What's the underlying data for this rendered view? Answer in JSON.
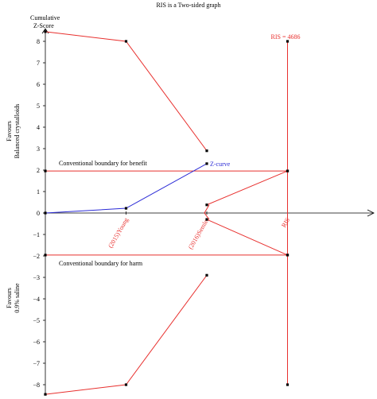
{
  "chart_data": {
    "type": "line",
    "title": "RIS is a Two-sided graph",
    "ylabel_top": "Cumulative",
    "ylabel_bottom": "Z-Score",
    "favours_top": [
      "Favours",
      "Balanced crystalloids"
    ],
    "favours_bottom": [
      "Favours",
      "0.9% saline"
    ],
    "ylim": [
      -8.5,
      8.7
    ],
    "yticks": [
      8,
      7,
      6,
      5,
      4,
      3,
      2,
      1,
      0,
      -1,
      -2,
      -3,
      -4,
      -5,
      -6,
      -7,
      -8
    ],
    "ytick_labels": [
      "8",
      "7",
      "6",
      "5",
      "4",
      "3",
      "2",
      "1",
      "0",
      "−1",
      "−2",
      "−3",
      "−4",
      "−5",
      "−6",
      "−7",
      "−8"
    ],
    "x_categories": [
      "(2015)Young",
      "(2016)Semler",
      "RIS"
    ],
    "ris_label": "RIS = 4686",
    "z_curve": {
      "name": "Z-curve",
      "color": "#2b2bd6",
      "points": [
        [
          0,
          0
        ],
        [
          1,
          0.22
        ],
        [
          2,
          2.3
        ]
      ]
    },
    "conventional_benefit": {
      "label": "Conventional boundary for benefit",
      "color": "#e8302e",
      "points": [
        [
          0,
          1.96
        ],
        [
          3,
          1.96
        ]
      ]
    },
    "conventional_harm": {
      "label": "Conventional boundary for harm",
      "color": "#e8302e",
      "points": [
        [
          0,
          -1.96
        ],
        [
          3,
          -1.96
        ]
      ]
    },
    "upper_monitoring": {
      "color": "#e8302e",
      "points": [
        [
          0,
          8.45
        ],
        [
          1,
          8.0
        ],
        [
          2,
          2.9
        ]
      ]
    },
    "lower_monitoring": {
      "color": "#e8302e",
      "points": [
        [
          0,
          -8.45
        ],
        [
          1,
          -8.0
        ],
        [
          2,
          -2.9
        ]
      ]
    },
    "upper_futility": {
      "color": "#e8302e",
      "points": [
        [
          2,
          0.38
        ],
        [
          3,
          1.96
        ]
      ]
    },
    "lower_futility": {
      "color": "#e8302e",
      "points": [
        [
          2,
          -0.3
        ],
        [
          3,
          -1.96
        ]
      ]
    },
    "ris_line": {
      "color": "#e8302e",
      "x": 3,
      "ylim": [
        -8,
        8
      ]
    },
    "colors": {
      "boundary": "#e8302e",
      "zcurve": "#2b2bd6",
      "axis": "#000000"
    }
  }
}
